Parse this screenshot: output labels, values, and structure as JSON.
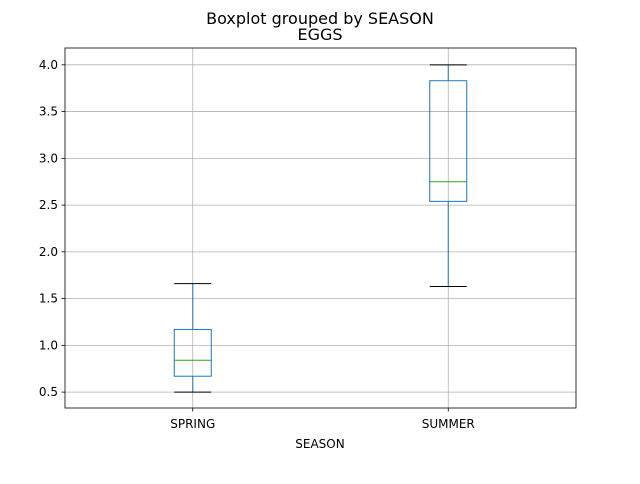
{
  "chart_data": {
    "type": "box",
    "suptitle": "Boxplot grouped by SEASON",
    "title": "EGGS",
    "xlabel": "SEASON",
    "ylabel": "",
    "ylim": [
      0.33,
      4.18
    ],
    "yticks": [
      0.5,
      1.0,
      1.5,
      2.0,
      2.5,
      3.0,
      3.5,
      4.0
    ],
    "ytick_labels": [
      "0.5",
      "1.0",
      "1.5",
      "2.0",
      "2.5",
      "3.0",
      "3.5",
      "4.0"
    ],
    "categories": [
      "SPRING",
      "SUMMER"
    ],
    "grid": true,
    "box_color": "#1f77b4",
    "median_color": "#2ca02c",
    "whisker_color": "#1f77b4",
    "cap_color": "#000000",
    "boxes": [
      {
        "category": "SPRING",
        "whislo": 0.5,
        "q1": 0.67,
        "med": 0.84,
        "q3": 1.17,
        "whishi": 1.66
      },
      {
        "category": "SUMMER",
        "whislo": 1.63,
        "q1": 2.54,
        "med": 2.75,
        "q3": 3.83,
        "whishi": 4.0
      }
    ]
  }
}
